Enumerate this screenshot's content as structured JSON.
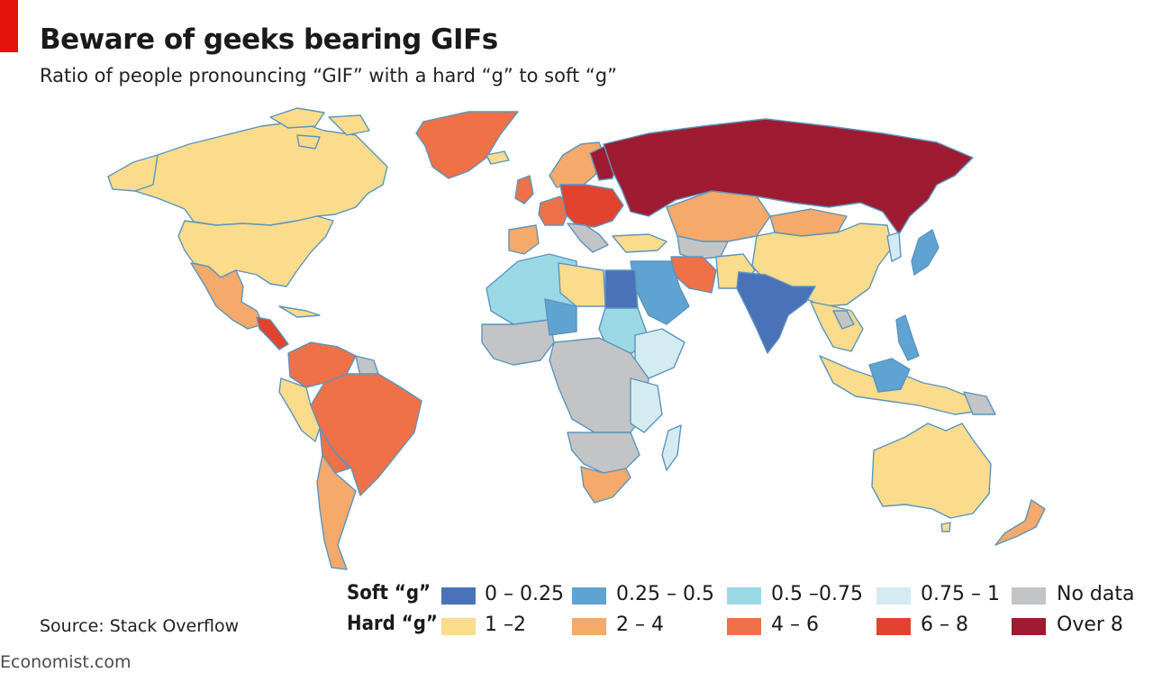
{
  "title": "Beware of geeks bearing GIFs",
  "subtitle": "Ratio of people pronouncing “GIF” with a hard “g” to soft “g”",
  "source": "Source: Stack Overflow",
  "brand": "Economist.com",
  "colors": {
    "accent": "#e3120b",
    "soft_0_025": "#4a72b8",
    "soft_025_05": "#5fa3d3",
    "soft_05_075": "#9ad8e6",
    "soft_075_1": "#d4ebf1",
    "no_data": "#c3c4c6",
    "hard_1_2": "#fbdc8c",
    "hard_2_4": "#f5a96a",
    "hard_4_6": "#ef7148",
    "hard_6_8": "#e2432f",
    "hard_over_8": "#9e1b32",
    "border": "#5b95bd"
  },
  "legend": {
    "soft_label": "Soft “g”",
    "hard_label": "Hard “g”",
    "soft_items": [
      {
        "label": "0 – 0.25",
        "color": "#4a72b8"
      },
      {
        "label": "0.25 – 0.5",
        "color": "#5fa3d3"
      },
      {
        "label": "0.5 –0.75",
        "color": "#9ad8e6"
      },
      {
        "label": "0.75 – 1",
        "color": "#d4ebf1"
      },
      {
        "label": "No data",
        "color": "#c3c4c6"
      }
    ],
    "hard_items": [
      {
        "label": "1 –2",
        "color": "#fbdc8c"
      },
      {
        "label": "2 – 4",
        "color": "#f5a96a"
      },
      {
        "label": "4 – 6",
        "color": "#ef7148"
      },
      {
        "label": "6 – 8",
        "color": "#e2432f"
      },
      {
        "label": "Over 8",
        "color": "#9e1b32"
      }
    ]
  }
}
